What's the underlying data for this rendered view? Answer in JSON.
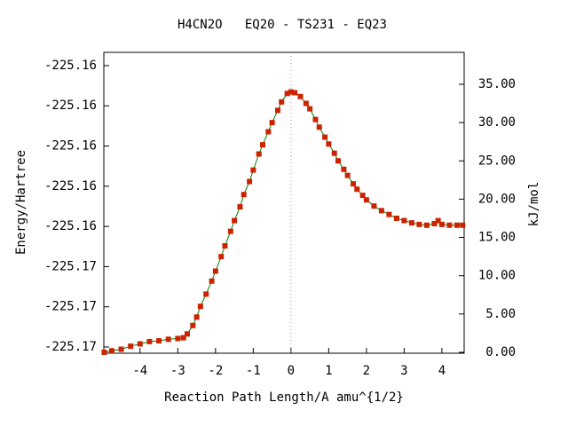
{
  "chart_data": {
    "type": "line",
    "title": "H4CN2O   EQ20 - TS231 - EQ23",
    "x_label": "Reaction Path Length/A amu^{1/2}",
    "y_label": "Energy/Hartree",
    "y2_label": "kJ/mol",
    "xlim": [
      -4.96,
      4.59
    ],
    "xticks": [
      -4,
      -3,
      -2,
      -1,
      0,
      1,
      2,
      3,
      4
    ],
    "ylim": [
      -225.17031,
      -225.15534
    ],
    "yticks": [
      {
        "value": -225.17,
        "label": "-225.17"
      },
      {
        "value": -225.168,
        "label": "-225.17"
      },
      {
        "value": -225.166,
        "label": "-225.17"
      },
      {
        "value": -225.164,
        "label": "-225.16"
      },
      {
        "value": -225.162,
        "label": "-225.16"
      },
      {
        "value": -225.16,
        "label": "-225.16"
      },
      {
        "value": -225.158,
        "label": "-225.16"
      },
      {
        "value": -225.156,
        "label": "-225.16"
      }
    ],
    "y2lim": [
      -0.12,
      39.17
    ],
    "y2ticks": [
      {
        "value": 0,
        "label": "0.00"
      },
      {
        "value": 5,
        "label": "5.00"
      },
      {
        "value": 10,
        "label": "10.00"
      },
      {
        "value": 15,
        "label": "15.00"
      },
      {
        "value": 20,
        "label": "20.00"
      },
      {
        "value": 25,
        "label": "25.00"
      },
      {
        "value": 30,
        "label": "30.00"
      },
      {
        "value": 35,
        "label": "35.00"
      }
    ],
    "x": [
      -4.95,
      -4.75,
      -4.5,
      -4.25,
      -4.0,
      -3.75,
      -3.5,
      -3.25,
      -3.0,
      -2.85,
      -2.75,
      -2.6,
      -2.5,
      -2.4,
      -2.25,
      -2.1,
      -2.0,
      -1.85,
      -1.75,
      -1.6,
      -1.5,
      -1.35,
      -1.25,
      -1.1,
      -1.0,
      -0.85,
      -0.75,
      -0.6,
      -0.5,
      -0.35,
      -0.25,
      -0.1,
      0,
      0.1,
      0.25,
      0.4,
      0.5,
      0.65,
      0.75,
      0.9,
      1.0,
      1.15,
      1.25,
      1.4,
      1.5,
      1.65,
      1.75,
      1.9,
      2.0,
      2.2,
      2.4,
      2.6,
      2.8,
      3.0,
      3.2,
      3.4,
      3.6,
      3.8,
      3.9,
      4.0,
      4.2,
      4.4,
      4.55
    ],
    "series": [
      {
        "axis": "y2",
        "color": "#008000",
        "marker_color": "#cc2200",
        "values": [
          0.0,
          0.2,
          0.4,
          0.8,
          1.1,
          1.4,
          1.5,
          1.7,
          1.8,
          1.9,
          2.4,
          3.5,
          4.6,
          6.0,
          7.6,
          9.3,
          10.6,
          12.5,
          13.9,
          15.8,
          17.2,
          19.0,
          20.6,
          22.3,
          23.8,
          25.9,
          27.1,
          28.8,
          30.0,
          31.6,
          32.7,
          33.8,
          34.0,
          33.9,
          33.4,
          32.5,
          31.8,
          30.4,
          29.4,
          28.1,
          27.2,
          26.0,
          25.0,
          23.9,
          23.1,
          22.0,
          21.3,
          20.5,
          19.9,
          19.1,
          18.5,
          18.0,
          17.5,
          17.2,
          16.9,
          16.7,
          16.6,
          16.8,
          17.2,
          16.7,
          16.6,
          16.6,
          16.6
        ]
      }
    ]
  }
}
